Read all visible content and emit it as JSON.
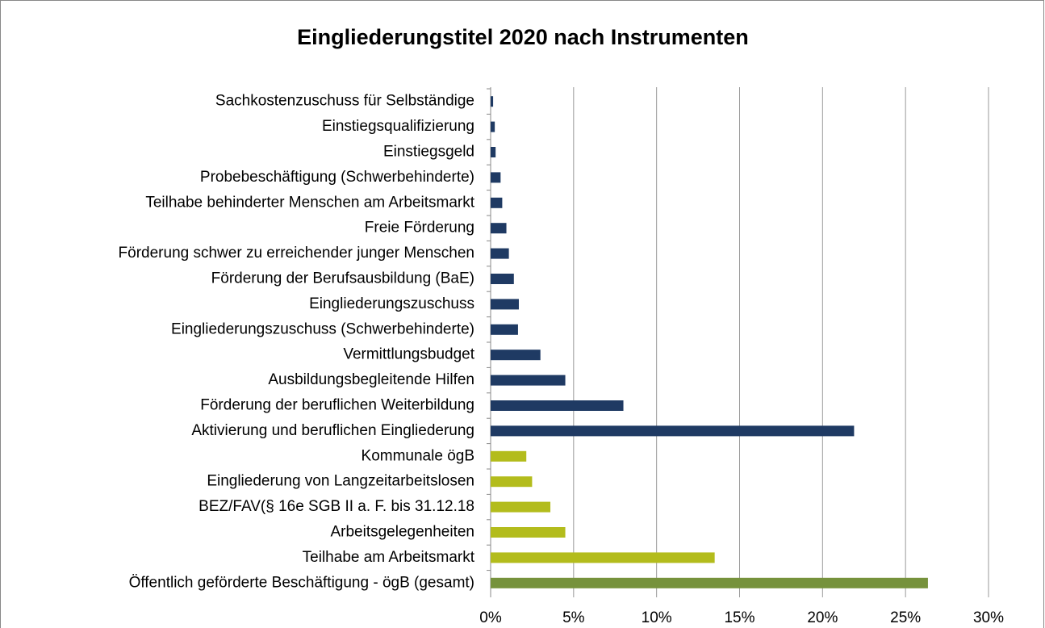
{
  "chart_data": {
    "type": "barh",
    "title": "Eingliederungstitel 2020 nach Instrumenten",
    "categories": [
      "Sachkostenzuschuss für Selbständige",
      "Einstiegsqualifizierung",
      "Einstiegsgeld",
      "Probebeschäftigung (Schwerbehinderte)",
      "Teilhabe behinderter Menschen am Arbeitsmarkt",
      "Freie Förderung",
      "Förderung schwer zu erreichender junger Menschen",
      "Förderung der Berufsausbildung (BaE)",
      "Eingliederungszuschuss",
      "Eingliederungszuschuss (Schwerbehinderte)",
      "Vermittlungsbudget",
      "Ausbildungsbegleitende Hilfen",
      "Förderung der beruflichen Weiterbildung",
      "Aktivierung und beruflichen Eingliederung",
      "Kommunale ögB",
      "Eingliederung von Langzeitarbeitslosen",
      "BEZ/FAV(§ 16e SGB II a. F. bis 31.12.18",
      "Arbeitsgelegenheiten",
      "Teilhabe am Arbeitsmarkt",
      "Öffentlich geförderte Beschäftigung - ögB (gesamt)"
    ],
    "values": [
      0.15,
      0.25,
      0.3,
      0.6,
      0.7,
      0.95,
      1.1,
      1.4,
      1.7,
      1.65,
      3.0,
      4.5,
      8.0,
      21.9,
      2.15,
      2.5,
      3.6,
      4.5,
      13.5,
      26.35
    ],
    "colors": [
      "#1f3a63",
      "#1f3a63",
      "#1f3a63",
      "#1f3a63",
      "#1f3a63",
      "#1f3a63",
      "#1f3a63",
      "#1f3a63",
      "#1f3a63",
      "#1f3a63",
      "#1f3a63",
      "#1f3a63",
      "#1f3a63",
      "#1f3a63",
      "#b3bc1c",
      "#b3bc1c",
      "#b3bc1c",
      "#b3bc1c",
      "#b3bc1c",
      "#76923c"
    ],
    "xlim": [
      0,
      30
    ],
    "xticks": [
      {
        "value": 0,
        "label": "0%"
      },
      {
        "value": 5,
        "label": "5%"
      },
      {
        "value": 10,
        "label": "10%"
      },
      {
        "value": 15,
        "label": "15%"
      },
      {
        "value": 20,
        "label": "20%"
      },
      {
        "value": 25,
        "label": "25%"
      },
      {
        "value": 30,
        "label": "30%"
      }
    ],
    "grid": true
  }
}
